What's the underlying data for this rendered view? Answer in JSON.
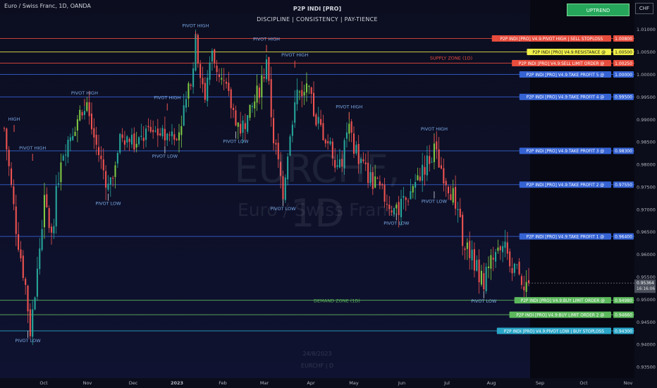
{
  "header": {
    "symbol_title": "Euro / Swiss Franc, 1D, OANDA",
    "indicator_title": "P2P INDI [PRO]",
    "indicator_subtitle": "DISCIPLINE  |  CONSISTENCY  |  PAY-TIENCE",
    "trend_badge": "UPTREND",
    "currency": "CHF",
    "trend_color": "#26a65b"
  },
  "watermark": {
    "symbol": "EURCHF, 1D",
    "description": "Euro / Swiss Franc",
    "date": "24/8/2023",
    "note": "EURCHF | D"
  },
  "chart_data": {
    "type": "candlestick",
    "x_axis": {
      "labels": [
        "Oct",
        "Nov",
        "Dec",
        "2023",
        "Feb",
        "Mar",
        "Apr",
        "May",
        "Jun",
        "Jul",
        "Aug",
        "Sep",
        "Oct",
        "Nov"
      ]
    },
    "y_axis": {
      "ticks": [
        "1.01000",
        "1.00500",
        "1.00000",
        "0.99500",
        "0.99000",
        "0.98500",
        "0.98000",
        "0.97500",
        "0.97000",
        "0.96500",
        "0.96000",
        "0.95500",
        "0.95000",
        "0.94500",
        "0.94000",
        "0.93500"
      ],
      "range": [
        0.9325,
        1.0145
      ]
    },
    "price_lines": [
      {
        "label": "P2P INDI [PRO] V4.9:PIVOT HIGH | SELL STOPLOSS",
        "value": "1.00800",
        "price": 1.008,
        "color": "#e74c3c",
        "text_color": "#ffffff"
      },
      {
        "label": "P2P INDI [PRO] V4.9:RESISTANCE @",
        "value": "1.00500",
        "price": 1.005,
        "color": "#f2f24a",
        "text_color": "#1a1a1a"
      },
      {
        "label": "P2P INDI [PRO] V4.9:SELL LIMIT ORDER @",
        "value": "1.00250",
        "price": 1.0025,
        "color": "#e74c3c",
        "text_color": "#ffffff"
      },
      {
        "label": "P2P INDI [PRO] V4.9:TAKE PROFIT 5 @",
        "value": "1.00000",
        "price": 1.0,
        "color": "#3563d4",
        "text_color": "#ffffff"
      },
      {
        "label": "P2P INDI [PRO] V4.9:TAKE PROFIT 4 @",
        "value": "0.99500",
        "price": 0.995,
        "color": "#3563d4",
        "text_color": "#ffffff"
      },
      {
        "label": "P2P INDI [PRO] V4.9:TAKE PROFIT 3 @",
        "value": "0.98300",
        "price": 0.983,
        "color": "#3563d4",
        "text_color": "#ffffff"
      },
      {
        "label": "P2P INDI [PRO] V4.9:TAKE PROFIT 2 @",
        "value": "0.97550",
        "price": 0.9755,
        "color": "#3563d4",
        "text_color": "#ffffff"
      },
      {
        "label": "P2P INDI [PRO] V4.9:TAKE PROFIT 1 @",
        "value": "0.96400",
        "price": 0.964,
        "color": "#3563d4",
        "text_color": "#ffffff"
      },
      {
        "label": "P2P INDI [PRO] V4.9:BUY LIMIT ORDER @",
        "value": "0.94980",
        "price": 0.9498,
        "color": "#5cb85c",
        "text_color": "#ffffff"
      },
      {
        "label": "P2P INDI [PRO] V4.9:BUY LIMIT ORDER 2 @",
        "value": "0.94660",
        "price": 0.9466,
        "color": "#5cb85c",
        "text_color": "#ffffff"
      },
      {
        "label": "P2P INDI [PRO] V4.9:PIVOT LOW | BUY STOPLOSS",
        "value": "0.94300",
        "price": 0.943,
        "color": "#2aa6c9",
        "text_color": "#ffffff"
      }
    ],
    "current_price": {
      "value": "0.95364",
      "countdown": "16:16:06",
      "price": 0.95364
    },
    "zones": [
      {
        "label": "SUPPLY ZONE (1D)",
        "price": 1.0025,
        "color": "#e74c3c"
      },
      {
        "label": "DEMAND ZONE (1D)",
        "price": 0.9498,
        "color": "#5cb85c"
      }
    ],
    "pivot_labels": [
      {
        "text": "HIGH",
        "bar": 0,
        "price": 0.9897,
        "kind": "high"
      },
      {
        "text": "PIVOT HIGH",
        "bar": 12,
        "price": 0.9833,
        "kind": "high"
      },
      {
        "text": "PIVOT HIGH",
        "bar": 34,
        "price": 0.9955,
        "kind": "high"
      },
      {
        "text": "PIVOT LOW",
        "bar": 44,
        "price": 0.971,
        "kind": "low"
      },
      {
        "text": "PIVOT HIGH",
        "bar": 69,
        "price": 0.9945,
        "kind": "high"
      },
      {
        "text": "PIVOT LOW",
        "bar": 68,
        "price": 0.9815,
        "kind": "low"
      },
      {
        "text": "PIVOT HIGH",
        "bar": 81,
        "price": 1.0105,
        "kind": "high"
      },
      {
        "text": "PIVOT LOW",
        "bar": 98,
        "price": 0.9848,
        "kind": "low"
      },
      {
        "text": "PIVOT HIGH",
        "bar": 111,
        "price": 1.0075,
        "kind": "high"
      },
      {
        "text": "PIVOT HIGH",
        "bar": 123,
        "price": 1.004,
        "kind": "high"
      },
      {
        "text": "PIVOT LOW",
        "bar": 118,
        "price": 0.9698,
        "kind": "low"
      },
      {
        "text": "PIVOT HIGH",
        "bar": 146,
        "price": 0.9925,
        "kind": "high"
      },
      {
        "text": "PIVOT LOW",
        "bar": 166,
        "price": 0.9666,
        "kind": "low"
      },
      {
        "text": "PIVOT HIGH",
        "bar": 182,
        "price": 0.9875,
        "kind": "high"
      },
      {
        "text": "PIVOT LOW",
        "bar": 182,
        "price": 0.9715,
        "kind": "low"
      },
      {
        "text": "PIVOT LOW",
        "bar": 203,
        "price": 0.9493,
        "kind": "low"
      },
      {
        "text": "PIVOT LOW",
        "bar": 10,
        "price": 0.9405,
        "kind": "low"
      }
    ],
    "price_path": [
      {
        "bar": 0,
        "price": 0.988
      },
      {
        "bar": 5,
        "price": 0.966
      },
      {
        "bar": 9,
        "price": 0.953
      },
      {
        "bar": 11,
        "price": 0.943
      },
      {
        "bar": 14,
        "price": 0.956
      },
      {
        "bar": 17,
        "price": 0.972
      },
      {
        "bar": 20,
        "price": 0.964
      },
      {
        "bar": 24,
        "price": 0.982
      },
      {
        "bar": 30,
        "price": 0.989
      },
      {
        "bar": 34,
        "price": 0.994
      },
      {
        "bar": 38,
        "price": 0.986
      },
      {
        "bar": 44,
        "price": 0.975
      },
      {
        "bar": 50,
        "price": 0.987
      },
      {
        "bar": 56,
        "price": 0.984
      },
      {
        "bar": 62,
        "price": 0.988
      },
      {
        "bar": 68,
        "price": 0.986
      },
      {
        "bar": 74,
        "price": 0.988
      },
      {
        "bar": 78,
        "price": 0.996
      },
      {
        "bar": 81,
        "price": 1.007
      },
      {
        "bar": 85,
        "price": 0.995
      },
      {
        "bar": 88,
        "price": 1.004
      },
      {
        "bar": 92,
        "price": 0.999
      },
      {
        "bar": 96,
        "price": 0.993
      },
      {
        "bar": 100,
        "price": 0.988
      },
      {
        "bar": 104,
        "price": 0.991
      },
      {
        "bar": 108,
        "price": 0.997
      },
      {
        "bar": 111,
        "price": 1.002
      },
      {
        "bar": 114,
        "price": 0.986
      },
      {
        "bar": 118,
        "price": 0.974
      },
      {
        "bar": 121,
        "price": 0.988
      },
      {
        "bar": 124,
        "price": 0.996
      },
      {
        "bar": 128,
        "price": 0.997
      },
      {
        "bar": 132,
        "price": 0.99
      },
      {
        "bar": 138,
        "price": 0.984
      },
      {
        "bar": 142,
        "price": 0.979
      },
      {
        "bar": 146,
        "price": 0.988
      },
      {
        "bar": 150,
        "price": 0.981
      },
      {
        "bar": 156,
        "price": 0.976
      },
      {
        "bar": 162,
        "price": 0.972
      },
      {
        "bar": 166,
        "price": 0.969
      },
      {
        "bar": 170,
        "price": 0.972
      },
      {
        "bar": 176,
        "price": 0.978
      },
      {
        "bar": 182,
        "price": 0.983
      },
      {
        "bar": 186,
        "price": 0.978
      },
      {
        "bar": 190,
        "price": 0.973
      },
      {
        "bar": 194,
        "price": 0.964
      },
      {
        "bar": 198,
        "price": 0.959
      },
      {
        "bar": 203,
        "price": 0.954
      },
      {
        "bar": 207,
        "price": 0.959
      },
      {
        "bar": 212,
        "price": 0.961
      },
      {
        "bar": 216,
        "price": 0.957
      },
      {
        "bar": 220,
        "price": 0.954
      },
      {
        "bar": 222,
        "price": 0.9536
      }
    ],
    "grid": false,
    "colors": {
      "up": "#26a69a",
      "down": "#ef5350",
      "up_alt": "#7ec843"
    }
  }
}
